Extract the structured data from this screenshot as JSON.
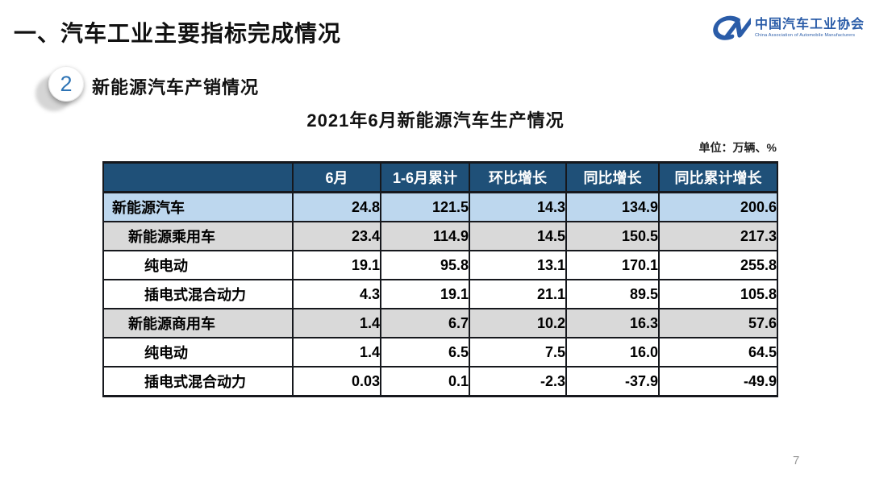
{
  "slide": {
    "title": "一、汽车工业主要指标完成情况",
    "section_badge": "2",
    "section_title": "新能源汽车产销情况",
    "page_number": "7"
  },
  "logo": {
    "monogram": "CM",
    "name_cn": "中国汽车工业协会",
    "name_en": "China Association of Automobile Manufacturers"
  },
  "chart_data": {
    "type": "table",
    "title": "2021年6月新能源汽车生产情况",
    "unit_label": "单位：万辆、%",
    "columns": [
      "",
      "6月",
      "1-6月累计",
      "环比增长",
      "同比增长",
      "同比累计增长"
    ],
    "rows": [
      {
        "label": "新能源汽车",
        "indent": 0,
        "band": "blue",
        "values": [
          "24.8",
          "121.5",
          "14.3",
          "134.9",
          "200.6"
        ]
      },
      {
        "label": "新能源乘用车",
        "indent": 1,
        "band": "gray",
        "values": [
          "23.4",
          "114.9",
          "14.5",
          "150.5",
          "217.3"
        ]
      },
      {
        "label": "纯电动",
        "indent": 2,
        "band": "white",
        "values": [
          "19.1",
          "95.8",
          "13.1",
          "170.1",
          "255.8"
        ]
      },
      {
        "label": "插电式混合动力",
        "indent": 2,
        "band": "white",
        "values": [
          "4.3",
          "19.1",
          "21.1",
          "89.5",
          "105.8"
        ]
      },
      {
        "label": "新能源商用车",
        "indent": 1,
        "band": "gray",
        "values": [
          "1.4",
          "6.7",
          "10.2",
          "16.3",
          "57.6"
        ]
      },
      {
        "label": "纯电动",
        "indent": 2,
        "band": "white",
        "values": [
          "1.4",
          "6.5",
          "7.5",
          "16.0",
          "64.5"
        ]
      },
      {
        "label": "插电式混合动力",
        "indent": 2,
        "band": "white",
        "values": [
          "0.03",
          "0.1",
          "-2.3",
          "-37.9",
          "-49.9"
        ]
      }
    ]
  },
  "colors": {
    "header_bg": "#1F5078",
    "row_blue": "#BDD7EE",
    "row_gray": "#D9D9D9",
    "border": "#16181D",
    "logo_blue": "#2A5CA8",
    "accent_number": "#2E74B5"
  }
}
